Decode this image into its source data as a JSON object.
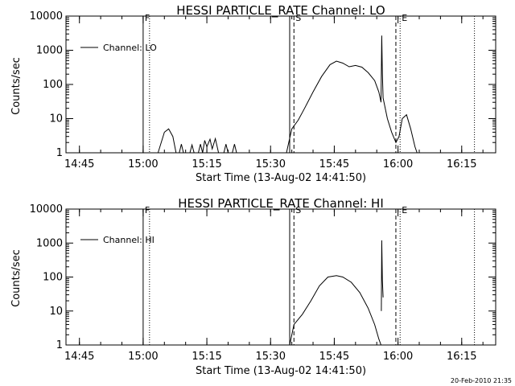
{
  "chart_data": [
    {
      "type": "line",
      "title": "HESSI PARTICLE_RATE Channel: LO",
      "xlabel": "Start Time (13-Aug-02 14:41:50)",
      "ylabel": "Counts/sec",
      "x_units": "time (HH:MM, 13-Aug-02)",
      "xlim": [
        "14:41:50",
        "16:23:00"
      ],
      "ylim": [
        1,
        10000
      ],
      "yscale": "log",
      "x_ticks": [
        "14:45",
        "15:00",
        "15:15",
        "15:30",
        "15:45",
        "16:00",
        "16:15"
      ],
      "y_ticks": [
        "1",
        "10",
        "100",
        "1000",
        "10000"
      ],
      "legend": {
        "placement": "top-left",
        "entries": [
          "Channel: LO"
        ]
      },
      "markers": [
        {
          "label": "F",
          "time": "15:00:00",
          "style": "solid"
        },
        {
          "label": "",
          "time": "15:01:30",
          "style": "dotted"
        },
        {
          "label": "",
          "time": "15:34:30",
          "style": "solid"
        },
        {
          "label": "S",
          "time": "15:35:30",
          "style": "dashed"
        },
        {
          "label": "",
          "time": "15:59:30",
          "style": "dashed"
        },
        {
          "label": "E",
          "time": "16:00:30",
          "style": "dotted"
        },
        {
          "label": "",
          "time": "16:18:00",
          "style": "dotted"
        }
      ],
      "series": [
        {
          "name": "Channel: LO",
          "segments": [
            [
              [
                "15:03:30",
                1
              ],
              [
                "15:05:00",
                4
              ],
              [
                "15:06:00",
                5
              ],
              [
                "15:07:00",
                3
              ],
              [
                "15:07:45",
                1
              ]
            ],
            [
              [
                "15:08:30",
                1
              ],
              [
                "15:09:00",
                1.8
              ],
              [
                "15:09:30",
                1
              ]
            ],
            [
              [
                "15:11:00",
                1
              ],
              [
                "15:11:30",
                1.7
              ],
              [
                "15:12:00",
                1
              ]
            ],
            [
              [
                "15:13:00",
                1
              ],
              [
                "15:13:30",
                1.8
              ],
              [
                "15:14:00",
                1
              ],
              [
                "15:14:30",
                2.3
              ],
              [
                "15:15:00",
                1.5
              ],
              [
                "15:15:45",
                2.5
              ],
              [
                "15:16:15",
                1.3
              ],
              [
                "15:17:00",
                2.6
              ],
              [
                "15:17:45",
                1
              ]
            ],
            [
              [
                "15:19:00",
                1
              ],
              [
                "15:19:30",
                1.8
              ],
              [
                "15:20:00",
                1
              ]
            ],
            [
              [
                "15:21:00",
                1
              ],
              [
                "15:21:30",
                1.8
              ],
              [
                "15:22:00",
                1
              ]
            ],
            [
              [
                "15:33:45",
                1
              ],
              [
                "15:35:00",
                5
              ],
              [
                "15:36:30",
                9
              ],
              [
                "15:38:00",
                20
              ],
              [
                "15:40:00",
                60
              ],
              [
                "15:42:00",
                170
              ],
              [
                "15:44:00",
                380
              ],
              [
                "15:45:30",
                480
              ],
              [
                "15:47:00",
                420
              ],
              [
                "15:48:30",
                330
              ],
              [
                "15:50:00",
                360
              ],
              [
                "15:51:30",
                320
              ],
              [
                "15:53:00",
                220
              ],
              [
                "15:54:30",
                130
              ],
              [
                "15:55:30",
                60
              ],
              [
                "15:56:00",
                30
              ],
              [
                "15:56:10",
                2700
              ],
              [
                "15:56:20",
                200
              ],
              [
                "15:56:30",
                40
              ],
              [
                "15:57:30",
                10
              ],
              [
                "15:58:30",
                4
              ],
              [
                "15:59:30",
                2
              ],
              [
                "16:00:15",
                3
              ],
              [
                "16:01:00",
                10
              ],
              [
                "16:02:00",
                13
              ],
              [
                "16:03:00",
                5
              ],
              [
                "16:04:00",
                1.5
              ],
              [
                "16:04:30",
                1
              ]
            ]
          ]
        }
      ]
    },
    {
      "type": "line",
      "title": "HESSI PARTICLE_RATE Channel: HI",
      "xlabel": "Start Time (13-Aug-02 14:41:50)",
      "ylabel": "Counts/sec",
      "x_units": "time (HH:MM, 13-Aug-02)",
      "xlim": [
        "14:41:50",
        "16:23:00"
      ],
      "ylim": [
        1,
        10000
      ],
      "yscale": "log",
      "x_ticks": [
        "14:45",
        "15:00",
        "15:15",
        "15:30",
        "15:45",
        "16:00",
        "16:15"
      ],
      "y_ticks": [
        "1",
        "10",
        "100",
        "1000",
        "10000"
      ],
      "legend": {
        "placement": "top-left",
        "entries": [
          "Channel: HI"
        ]
      },
      "markers": [
        {
          "label": "F",
          "time": "15:00:00",
          "style": "solid"
        },
        {
          "label": "",
          "time": "15:01:30",
          "style": "dotted"
        },
        {
          "label": "",
          "time": "15:34:30",
          "style": "solid"
        },
        {
          "label": "S",
          "time": "15:35:30",
          "style": "dashed"
        },
        {
          "label": "",
          "time": "15:59:30",
          "style": "dashed"
        },
        {
          "label": "E",
          "time": "16:00:30",
          "style": "dotted"
        },
        {
          "label": "",
          "time": "16:18:00",
          "style": "dotted"
        }
      ],
      "series": [
        {
          "name": "Channel: HI",
          "segments": [
            [
              [
                "15:34:30",
                1
              ],
              [
                "15:35:30",
                4
              ],
              [
                "15:37:30",
                8
              ],
              [
                "15:39:30",
                20
              ],
              [
                "15:41:30",
                55
              ],
              [
                "15:43:30",
                100
              ],
              [
                "15:45:30",
                110
              ],
              [
                "15:47:00",
                100
              ],
              [
                "15:49:00",
                70
              ],
              [
                "15:51:00",
                35
              ],
              [
                "15:53:00",
                12
              ],
              [
                "15:54:30",
                4
              ],
              [
                "15:55:30",
                1.5
              ],
              [
                "15:56:00",
                1
              ]
            ],
            [
              [
                "15:56:05",
                10
              ],
              [
                "15:56:10",
                1200
              ],
              [
                "15:56:20",
                80
              ],
              [
                "15:56:30",
                25
              ]
            ]
          ]
        }
      ]
    }
  ],
  "timestamp": "20-Feb-2010 21:35"
}
